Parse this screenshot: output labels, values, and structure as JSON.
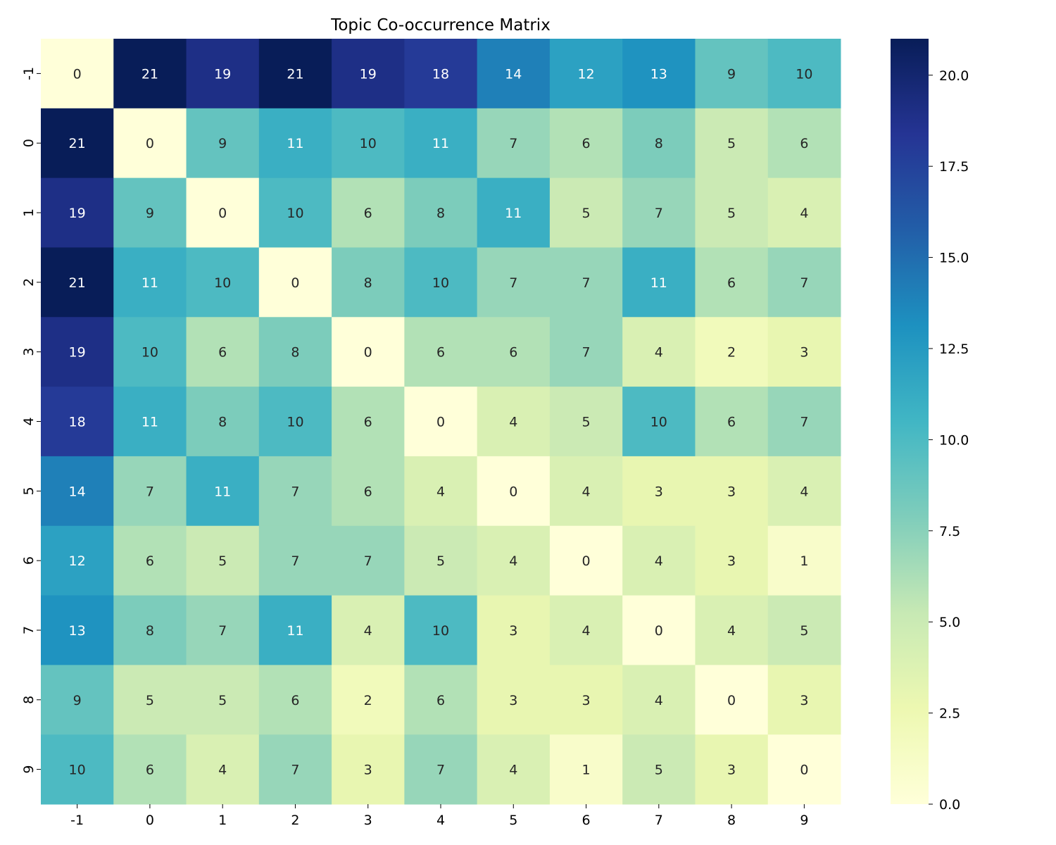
{
  "chart_data": {
    "type": "heatmap",
    "title": "Topic Co-occurrence Matrix",
    "xlabel": "",
    "ylabel": "",
    "x_categories": [
      "-1",
      "0",
      "1",
      "2",
      "3",
      "4",
      "5",
      "6",
      "7",
      "8",
      "9"
    ],
    "y_categories": [
      "-1",
      "0",
      "1",
      "2",
      "3",
      "4",
      "5",
      "6",
      "7",
      "8",
      "9"
    ],
    "values": [
      [
        0,
        21,
        19,
        21,
        19,
        18,
        14,
        12,
        13,
        9,
        10
      ],
      [
        21,
        0,
        9,
        11,
        10,
        11,
        7,
        6,
        8,
        5,
        6
      ],
      [
        19,
        9,
        0,
        10,
        6,
        8,
        11,
        5,
        7,
        5,
        4
      ],
      [
        21,
        11,
        10,
        0,
        8,
        10,
        7,
        7,
        11,
        6,
        7
      ],
      [
        19,
        10,
        6,
        8,
        0,
        6,
        6,
        7,
        4,
        2,
        3
      ],
      [
        18,
        11,
        8,
        10,
        6,
        0,
        4,
        5,
        10,
        6,
        7
      ],
      [
        14,
        7,
        11,
        7,
        6,
        4,
        0,
        4,
        3,
        3,
        4
      ],
      [
        12,
        6,
        5,
        7,
        7,
        5,
        4,
        0,
        4,
        3,
        1
      ],
      [
        13,
        8,
        7,
        11,
        4,
        10,
        3,
        4,
        0,
        4,
        5
      ],
      [
        9,
        5,
        5,
        6,
        2,
        6,
        3,
        3,
        4,
        0,
        3
      ],
      [
        10,
        6,
        4,
        7,
        3,
        7,
        4,
        1,
        5,
        3,
        0
      ]
    ],
    "colormap": "YlGnBu",
    "colorbar": {
      "range": [
        0,
        21
      ],
      "ticks": [
        0,
        2.5,
        5,
        7.5,
        10,
        12.5,
        15,
        17.5,
        20
      ],
      "tick_labels": [
        "0.0",
        "2.5",
        "5.0",
        "7.5",
        "10.0",
        "12.5",
        "15.0",
        "17.5",
        "20.0"
      ]
    },
    "annotated": true,
    "grid": false
  }
}
